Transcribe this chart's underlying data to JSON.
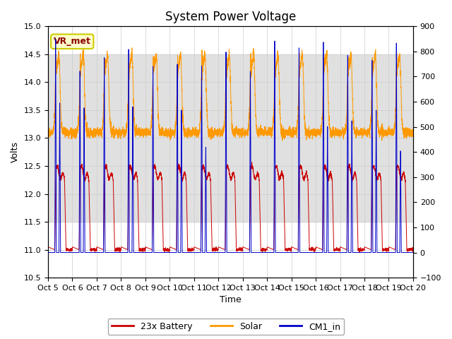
{
  "title": "System Power Voltage",
  "xlabel": "Time",
  "ylabel_left": "Volts",
  "ylim_left": [
    10.5,
    15.0
  ],
  "ylim_right": [
    -100,
    900
  ],
  "yticks_left": [
    10.5,
    11.0,
    11.5,
    12.0,
    12.5,
    13.0,
    13.5,
    14.0,
    14.5,
    15.0
  ],
  "yticks_right": [
    -100,
    0,
    100,
    200,
    300,
    400,
    500,
    600,
    700,
    800,
    900
  ],
  "xtick_labels": [
    "Oct 5",
    "Oct 6",
    "Oct 7",
    "Oct 8",
    "Oct 9",
    "Oct 10",
    "Oct 11",
    "Oct 12",
    "Oct 13",
    "Oct 14",
    "Oct 15",
    "Oct 16",
    "Oct 17",
    "Oct 18",
    "Oct 19",
    "Oct 20"
  ],
  "legend_labels": [
    "23x Battery",
    "Solar",
    "CM1_in"
  ],
  "line_colors": {
    "battery": "#cc0000",
    "solar": "#ff9900",
    "cm1": "#0000cc"
  },
  "annotation_text": "VR_met",
  "annotation_color": "#8b0000",
  "annotation_bg": "#ffffcc",
  "annotation_border": "#cccc00",
  "shaded_region_color": "#e0e0e0",
  "shaded_ylim": [
    11.5,
    14.5
  ],
  "background_color": "#ffffff",
  "grid_color": "#cccccc",
  "title_fontsize": 12,
  "axis_fontsize": 9,
  "tick_fontsize": 8
}
